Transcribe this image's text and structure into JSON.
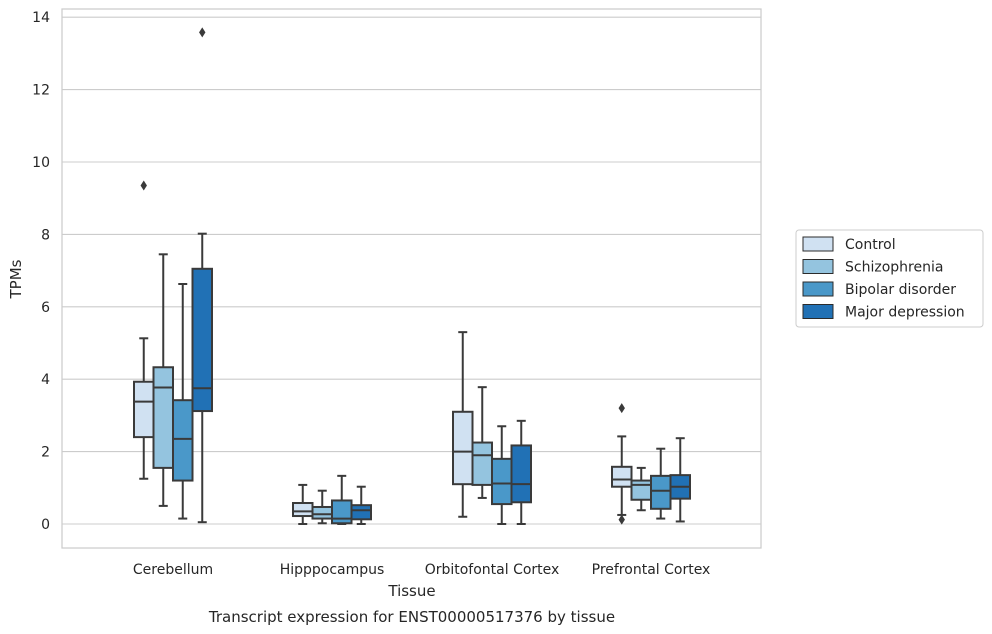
{
  "chart_data": {
    "type": "box",
    "title": "Transcript expression for ENST00000517376 by tissue",
    "xlabel": "Tissue",
    "ylabel": "TPMs",
    "ylim": [
      -0.65,
      14.3
    ],
    "yticks": [
      0,
      2,
      4,
      6,
      8,
      10,
      12,
      14
    ],
    "categories": [
      "Cerebellum",
      "Hipppocampus",
      "Orbitofontal Cortex",
      "Prefrontal Cortex"
    ],
    "grid": "horizontal",
    "legend_position": "right",
    "series": [
      {
        "name": "Control",
        "color": "#d0e1f2",
        "boxes": [
          {
            "whisker_low": 1.25,
            "q1": 2.4,
            "median": 3.38,
            "q3": 3.93,
            "whisker_high": 5.13,
            "outliers": [
              9.35
            ]
          },
          {
            "whisker_low": 0.0,
            "q1": 0.22,
            "median": 0.35,
            "q3": 0.58,
            "whisker_high": 1.08,
            "outliers": []
          },
          {
            "whisker_low": 0.2,
            "q1": 1.1,
            "median": 2.0,
            "q3": 3.1,
            "whisker_high": 5.3,
            "outliers": []
          },
          {
            "whisker_low": 0.25,
            "q1": 1.03,
            "median": 1.23,
            "q3": 1.58,
            "whisker_high": 2.42,
            "outliers": [
              3.2,
              0.12
            ]
          }
        ]
      },
      {
        "name": "Schizophrenia",
        "color": "#94c4df",
        "boxes": [
          {
            "whisker_low": 0.5,
            "q1": 1.55,
            "median": 3.77,
            "q3": 4.33,
            "whisker_high": 7.45,
            "outliers": []
          },
          {
            "whisker_low": 0.02,
            "q1": 0.15,
            "median": 0.27,
            "q3": 0.47,
            "whisker_high": 0.92,
            "outliers": []
          },
          {
            "whisker_low": 0.72,
            "q1": 1.08,
            "median": 1.9,
            "q3": 2.25,
            "whisker_high": 3.78,
            "outliers": []
          },
          {
            "whisker_low": 0.38,
            "q1": 0.67,
            "median": 1.08,
            "q3": 1.2,
            "whisker_high": 1.55,
            "outliers": []
          }
        ]
      },
      {
        "name": "Bipolar disorder",
        "color": "#4a98c9",
        "boxes": [
          {
            "whisker_low": 0.15,
            "q1": 1.2,
            "median": 2.35,
            "q3": 3.42,
            "whisker_high": 6.63,
            "outliers": []
          },
          {
            "whisker_low": 0.0,
            "q1": 0.02,
            "median": 0.15,
            "q3": 0.65,
            "whisker_high": 1.33,
            "outliers": []
          },
          {
            "whisker_low": 0.0,
            "q1": 0.55,
            "median": 1.12,
            "q3": 1.8,
            "whisker_high": 2.7,
            "outliers": []
          },
          {
            "whisker_low": 0.15,
            "q1": 0.42,
            "median": 0.92,
            "q3": 1.33,
            "whisker_high": 2.08,
            "outliers": []
          }
        ]
      },
      {
        "name": "Major depression",
        "color": "#2171b5",
        "boxes": [
          {
            "whisker_low": 0.05,
            "q1": 3.12,
            "median": 3.75,
            "q3": 7.05,
            "whisker_high": 8.02,
            "outliers": [
              13.58
            ]
          },
          {
            "whisker_low": 0.0,
            "q1": 0.13,
            "median": 0.38,
            "q3": 0.52,
            "whisker_high": 1.03,
            "outliers": []
          },
          {
            "whisker_low": 0.0,
            "q1": 0.6,
            "median": 1.1,
            "q3": 2.17,
            "whisker_high": 2.85,
            "outliers": []
          },
          {
            "whisker_low": 0.07,
            "q1": 0.7,
            "median": 1.03,
            "q3": 1.35,
            "whisker_high": 2.37,
            "outliers": []
          }
        ]
      }
    ]
  }
}
